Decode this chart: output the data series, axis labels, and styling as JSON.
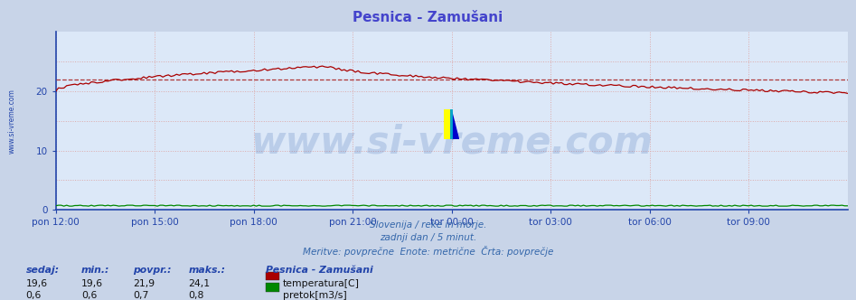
{
  "title": "Pesnica - Zamušani",
  "title_color": "#4444cc",
  "bg_color": "#c8d4e8",
  "plot_bg_color": "#dce8f8",
  "grid_color_v": "#ddaaaa",
  "grid_color_h": "#ddaaaa",
  "axis_color": "#2244aa",
  "spine_color_left": "#2244aa",
  "spine_color_bottom": "#2244aa",
  "subtitle_lines": [
    "Slovenija / reke in morje.",
    "zadnji dan / 5 minut.",
    "Meritve: povprečne  Enote: metrične  Črta: povprečje"
  ],
  "subtitle_color": "#3366aa",
  "xlabel_color": "#2244aa",
  "ylabel_color": "#2244aa",
  "xtick_labels": [
    "pon 12:00",
    "pon 15:00",
    "pon 18:00",
    "pon 21:00",
    "tor 00:00",
    "tor 03:00",
    "tor 06:00",
    "tor 09:00"
  ],
  "xtick_positions": [
    0,
    36,
    72,
    108,
    144,
    180,
    216,
    252
  ],
  "ytick_labels": [
    "0",
    "10",
    "20"
  ],
  "ytick_positions": [
    0,
    10,
    20
  ],
  "ylim": [
    0,
    30
  ],
  "xlim": [
    0,
    288
  ],
  "temp_color": "#aa0000",
  "flow_color": "#008800",
  "avg_line_color": "#aa2222",
  "avg_value": 21.9,
  "watermark_text": "www.si-vreme.com",
  "watermark_color": "#2255aa",
  "watermark_alpha": 0.18,
  "watermark_fontsize": 30,
  "left_label_color": "#2244aa",
  "left_label_text": "www.si-vreme.com",
  "info_label_sedaj": "sedaj:",
  "info_label_min": "min.:",
  "info_label_povpr": "povpr.:",
  "info_label_maks": "maks.:",
  "info_val_sedaj_temp": "19,6",
  "info_val_min_temp": "19,6",
  "info_val_povpr_temp": "21,9",
  "info_val_maks_temp": "24,1",
  "info_val_sedaj_flow": "0,6",
  "info_val_min_flow": "0,6",
  "info_val_povpr_flow": "0,7",
  "info_val_maks_flow": "0,8",
  "station_name": "Pesnica - Zamušani",
  "legend_temp": "temperatura[C]",
  "legend_flow": "pretok[m3/s]"
}
